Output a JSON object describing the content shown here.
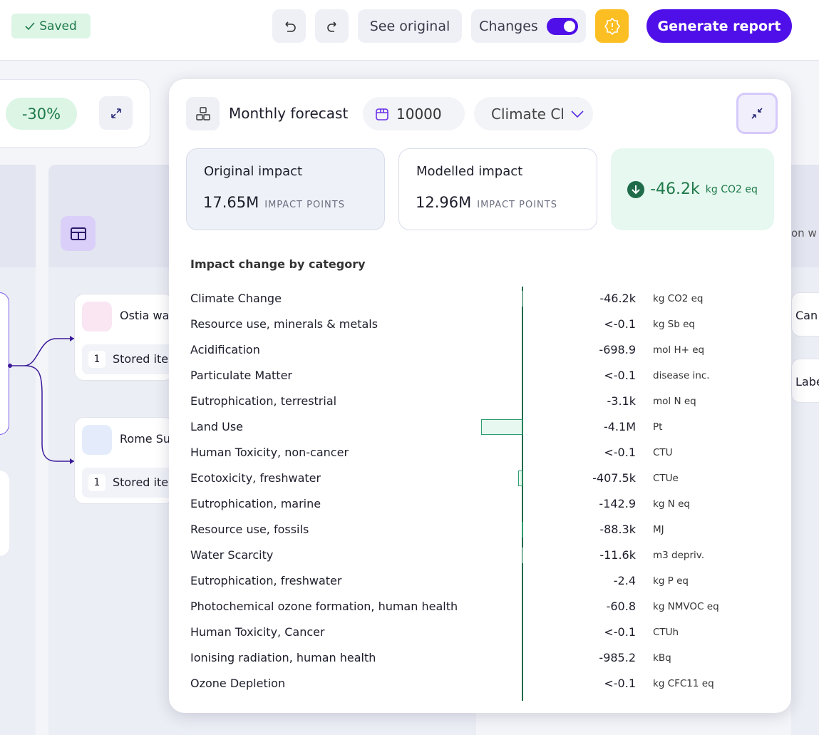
{
  "toolbar": {
    "status": "Saved",
    "see_original": "See original",
    "changes": "Changes",
    "generate": "Generate report"
  },
  "background": {
    "discount": "-30%",
    "nodes": [
      {
        "label": "Ostia wa",
        "count": "1",
        "sub": "Stored ite"
      },
      {
        "label": "Rome Su",
        "count": "1",
        "sub": "Stored ite"
      }
    ],
    "right_labels": [
      "on w",
      "Can",
      "Labe"
    ]
  },
  "popup": {
    "title": "Monthly forecast",
    "quantity": "10000",
    "category_select": "Climate Cl",
    "original": {
      "label": "Original impact",
      "value": "17.65M",
      "unit": "IMPACT POINTS"
    },
    "modelled": {
      "label": "Modelled impact",
      "value": "12.96M",
      "unit": "IMPACT POINTS"
    },
    "change": {
      "value": "-46.2k",
      "unit": "kg CO2 eq"
    },
    "breakdown": {
      "title": "Impact change by category",
      "bar_color": "#e6f8ef",
      "bar_stroke": "#2f9e6e",
      "axis_color": "#1f6b4a",
      "rows": [
        {
          "name": "Climate Change",
          "value": -46200,
          "value_label": "-46.2k",
          "unit": "kg CO2 eq"
        },
        {
          "name": "Resource use, minerals & metals",
          "value": -0.1,
          "value_label": "<-0.1",
          "unit": "kg Sb eq"
        },
        {
          "name": "Acidification",
          "value": -698.9,
          "value_label": "-698.9",
          "unit": "mol H+ eq"
        },
        {
          "name": "Particulate Matter",
          "value": -0.1,
          "value_label": "<-0.1",
          "unit": "disease inc."
        },
        {
          "name": "Eutrophication, terrestrial",
          "value": -3100,
          "value_label": "-3.1k",
          "unit": "mol N eq"
        },
        {
          "name": "Land Use",
          "value": -4100000,
          "value_label": "-4.1M",
          "unit": "Pt"
        },
        {
          "name": "Human Toxicity, non-cancer",
          "value": -0.1,
          "value_label": "<-0.1",
          "unit": "CTU"
        },
        {
          "name": "Ecotoxicity, freshwater",
          "value": -407500,
          "value_label": "-407.5k",
          "unit": "CTUe"
        },
        {
          "name": "Eutrophication, marine",
          "value": -142.9,
          "value_label": "-142.9",
          "unit": "kg N eq"
        },
        {
          "name": "Resource use, fossils",
          "value": -88300,
          "value_label": "-88.3k",
          "unit": "MJ"
        },
        {
          "name": "Water Scarcity",
          "value": -11600,
          "value_label": "-11.6k",
          "unit": "m3 depriv."
        },
        {
          "name": "Eutrophication, freshwater",
          "value": -2.4,
          "value_label": "-2.4",
          "unit": "kg P eq"
        },
        {
          "name": "Photochemical ozone formation, human health",
          "value": -60.8,
          "value_label": "-60.8",
          "unit": "kg NMVOC eq"
        },
        {
          "name": "Human Toxicity, Cancer",
          "value": -0.1,
          "value_label": "<-0.1",
          "unit": "CTUh"
        },
        {
          "name": "Ionising radiation, human health",
          "value": -985.2,
          "value_label": "-985.2",
          "unit": "kBq"
        },
        {
          "name": "Ozone Depletion",
          "value": -0.1,
          "value_label": "<-0.1",
          "unit": "kg CFC11 eq"
        }
      ]
    }
  }
}
